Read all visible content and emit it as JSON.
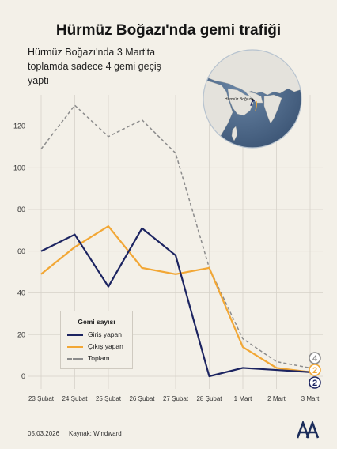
{
  "header": {
    "title": "Hürmüz Boğazı'nda gemi trafiği",
    "subtitle": "Hürmüz Boğazı'nda 3 Mart'ta toplamda sadece 4 gemi geçiş yaptı"
  },
  "map": {
    "label": "Hürmüz Boğazı",
    "ocean_color": "#4e6b8c",
    "land_color": "#e4e2dc"
  },
  "legend": {
    "title": "Gemi sayısı"
  },
  "colors": {
    "entering": "#1c2461",
    "exiting": "#f2a735",
    "total": "#8c8c8c",
    "background": "#f3f0e8"
  },
  "chart_data": {
    "type": "line",
    "x": [
      "23 Şubat",
      "24 Şubat",
      "25 Şubat",
      "26 Şubat",
      "27 Şubat",
      "28 Şubat",
      "1 Mart",
      "2 Mart",
      "3 Mart"
    ],
    "yticks": [
      0,
      20,
      40,
      60,
      80,
      100,
      120
    ],
    "ylim": [
      0,
      135
    ],
    "grid": true,
    "legend_position": "bottom-left",
    "series": [
      {
        "name": "Giriş yapan",
        "color": "#1c2461",
        "style": "solid",
        "values": [
          60,
          68,
          43,
          71,
          58,
          0,
          4,
          3,
          2
        ]
      },
      {
        "name": "Çıkış yapan",
        "color": "#f2a735",
        "style": "solid",
        "values": [
          49,
          62,
          72,
          52,
          49,
          52,
          14,
          4,
          2
        ]
      },
      {
        "name": "Toplam",
        "color": "#8c8c8c",
        "style": "dashed",
        "values": [
          109,
          130,
          115,
          123,
          107,
          52,
          18,
          7,
          4
        ]
      }
    ],
    "end_labels": [
      "4",
      "2",
      "2"
    ]
  },
  "footer": {
    "date": "05.03.2026",
    "source": "Kaynak: Windward",
    "logo_text": "AA"
  }
}
